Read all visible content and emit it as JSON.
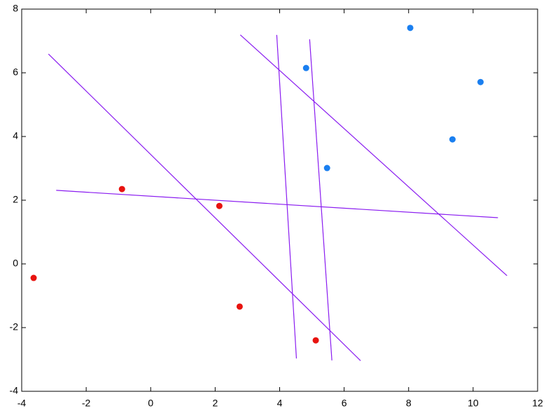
{
  "chart_data": {
    "type": "scatter",
    "xlim": [
      -4,
      12
    ],
    "ylim": [
      -4,
      8
    ],
    "xticks": [
      -4,
      -2,
      0,
      2,
      4,
      6,
      8,
      10,
      12
    ],
    "yticks": [
      -4,
      -2,
      0,
      2,
      4,
      6,
      8
    ],
    "grid": false,
    "series": [
      {
        "color": "#e8130f",
        "x": [
          -3.63,
          -0.89,
          2.13,
          2.76,
          5.12
        ],
        "y": [
          -0.44,
          2.35,
          1.82,
          -1.34,
          -2.4
        ]
      },
      {
        "color": "#1a7ff0",
        "x": [
          4.82,
          5.47,
          8.05,
          9.36,
          10.23
        ],
        "y": [
          6.15,
          3.01,
          7.41,
          3.91,
          5.71
        ]
      }
    ],
    "lines": [
      {
        "color": "#8a1cf0",
        "x": [
          -3.17,
          6.51
        ],
        "y": [
          6.59,
          -3.04
        ]
      },
      {
        "color": "#8a1cf0",
        "x": [
          -2.93,
          10.77
        ],
        "y": [
          2.31,
          1.45
        ]
      },
      {
        "color": "#8a1cf0",
        "x": [
          2.78,
          11.05
        ],
        "y": [
          7.19,
          -0.37
        ]
      },
      {
        "color": "#8a1cf0",
        "x": [
          3.91,
          4.52
        ],
        "y": [
          7.19,
          -2.97
        ]
      },
      {
        "color": "#8a1cf0",
        "x": [
          4.93,
          5.62
        ],
        "y": [
          7.05,
          -3.03
        ]
      }
    ]
  }
}
